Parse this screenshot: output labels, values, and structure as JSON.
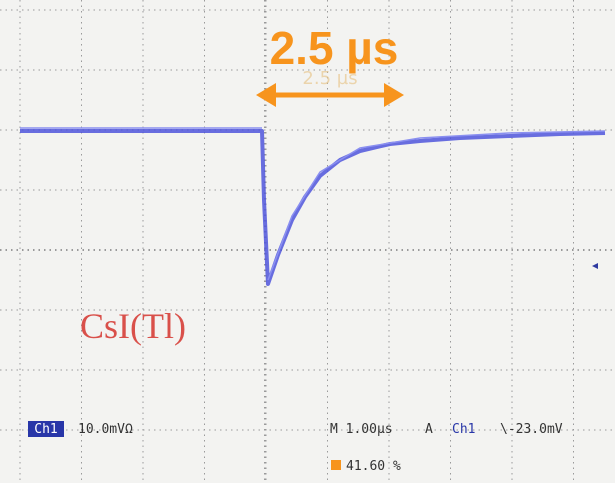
{
  "annotation": "2.5 µs",
  "faint_label": "2.5 µs",
  "trace_label": "CsI(Tl)",
  "status": {
    "channel": "Ch1",
    "scale": "10.0mVΩ",
    "timebase": "M 1.00µs",
    "trigger_mode": "A",
    "trigger_channel": "Ch1",
    "trigger_level": "\\-23.0mV",
    "position": "41.60 %"
  }
}
